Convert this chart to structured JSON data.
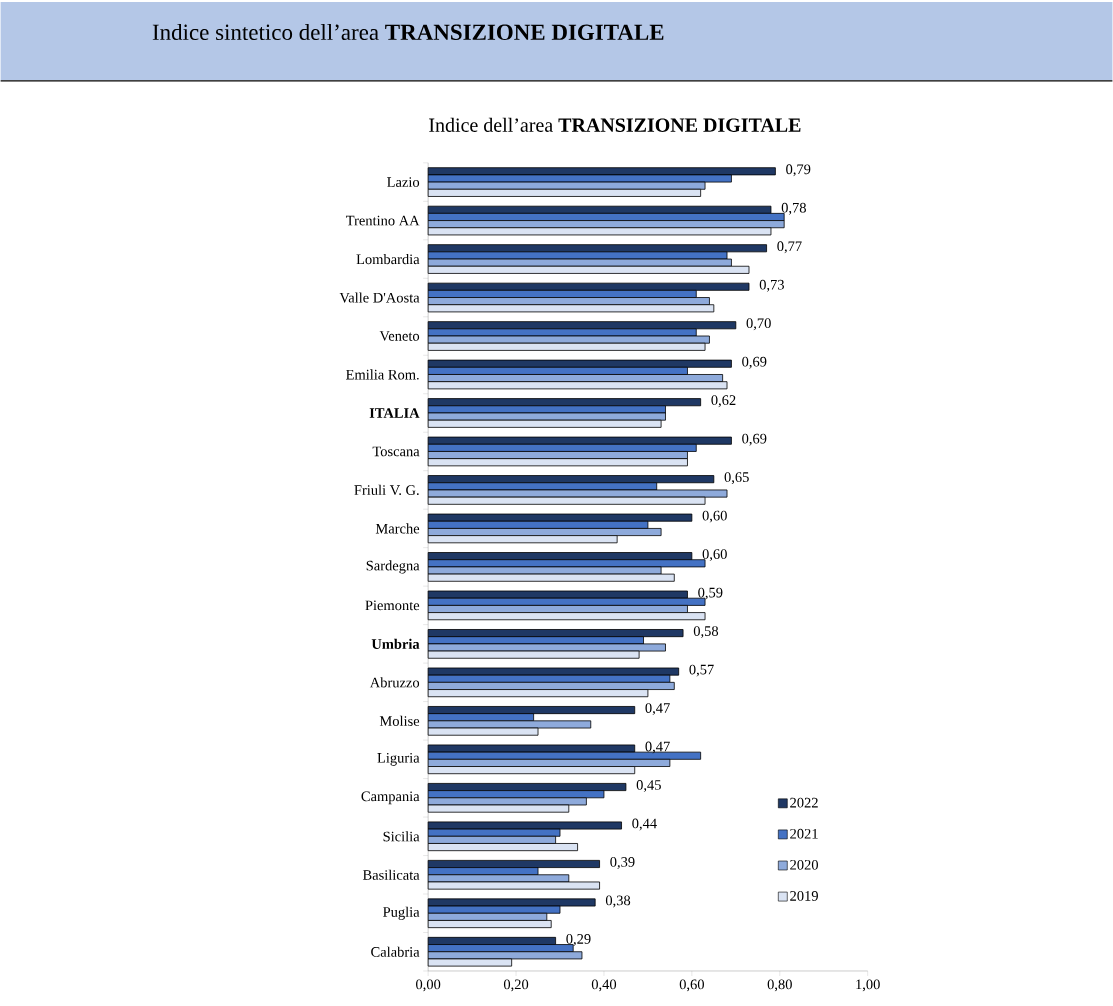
{
  "chart_data": {
    "type": "bar",
    "orientation": "horizontal",
    "title": "Indice sintetico dell’area **TRANSIZIONE DIGITALE**",
    "subtitle": "Indice dell’area **TRANSIZIONE DIGITALE**",
    "categories": [
      "Lazio",
      "Trentino AA",
      "Lombardia",
      "Valle D'Aosta",
      "Veneto",
      "Emilia Rom.",
      "**ITALIA**",
      "Toscana",
      "Friuli V. G.",
      "Marche",
      "Sardegna",
      "Piemonte",
      "**Umbria**",
      "Abruzzo",
      "Molise",
      "Liguria",
      "Campania",
      "Sicilia",
      "Basilicata",
      "Puglia",
      "Calabria"
    ],
    "series": [
      {
        "name": "2022",
        "color": "#1f3864",
        "values": [
          0.79,
          0.78,
          0.77,
          0.73,
          0.7,
          0.69,
          0.62,
          0.69,
          0.65,
          0.6,
          0.6,
          0.59,
          0.58,
          0.57,
          0.47,
          0.47,
          0.45,
          0.44,
          0.39,
          0.38,
          0.29
        ],
        "value_labels": [
          "0,79",
          "0,78",
          "0,77",
          "0,73",
          "0,70",
          "0,69",
          "0,62",
          "0,69",
          "0,65",
          "0,60",
          "0,60",
          "0,59",
          "0,58",
          "0,57",
          "0,47",
          "0,47",
          "0,45",
          "0,44",
          "0,39",
          "0,38",
          "0,29"
        ]
      },
      {
        "name": "2021",
        "color": "#4472c4",
        "values": [
          0.69,
          0.81,
          0.68,
          0.61,
          0.61,
          0.59,
          0.54,
          0.61,
          0.52,
          0.5,
          0.63,
          0.63,
          0.49,
          0.55,
          0.24,
          0.62,
          0.4,
          0.3,
          0.25,
          0.3,
          0.33
        ]
      },
      {
        "name": "2020",
        "color": "#8eaadb",
        "values": [
          0.63,
          0.81,
          0.69,
          0.64,
          0.64,
          0.67,
          0.54,
          0.59,
          0.68,
          0.53,
          0.53,
          0.59,
          0.54,
          0.56,
          0.37,
          0.55,
          0.36,
          0.29,
          0.32,
          0.27,
          0.35
        ]
      },
      {
        "name": "2019",
        "color": "#dae3f3",
        "values": [
          0.62,
          0.78,
          0.73,
          0.65,
          0.63,
          0.68,
          0.53,
          0.59,
          0.63,
          0.43,
          0.56,
          0.63,
          0.48,
          0.5,
          0.25,
          0.47,
          0.32,
          0.34,
          0.39,
          0.28,
          0.19
        ]
      }
    ],
    "xlim": [
      0,
      1
    ],
    "xticks": [
      {
        "value": 0,
        "label": "0,00"
      },
      {
        "value": 0.2,
        "label": "0,20"
      },
      {
        "value": 0.4,
        "label": "0,40"
      },
      {
        "value": 0.6,
        "label": "0,60"
      },
      {
        "value": 0.8,
        "label": "0,80"
      },
      {
        "value": 1,
        "label": "1,00"
      }
    ],
    "legend": "bottom right"
  }
}
